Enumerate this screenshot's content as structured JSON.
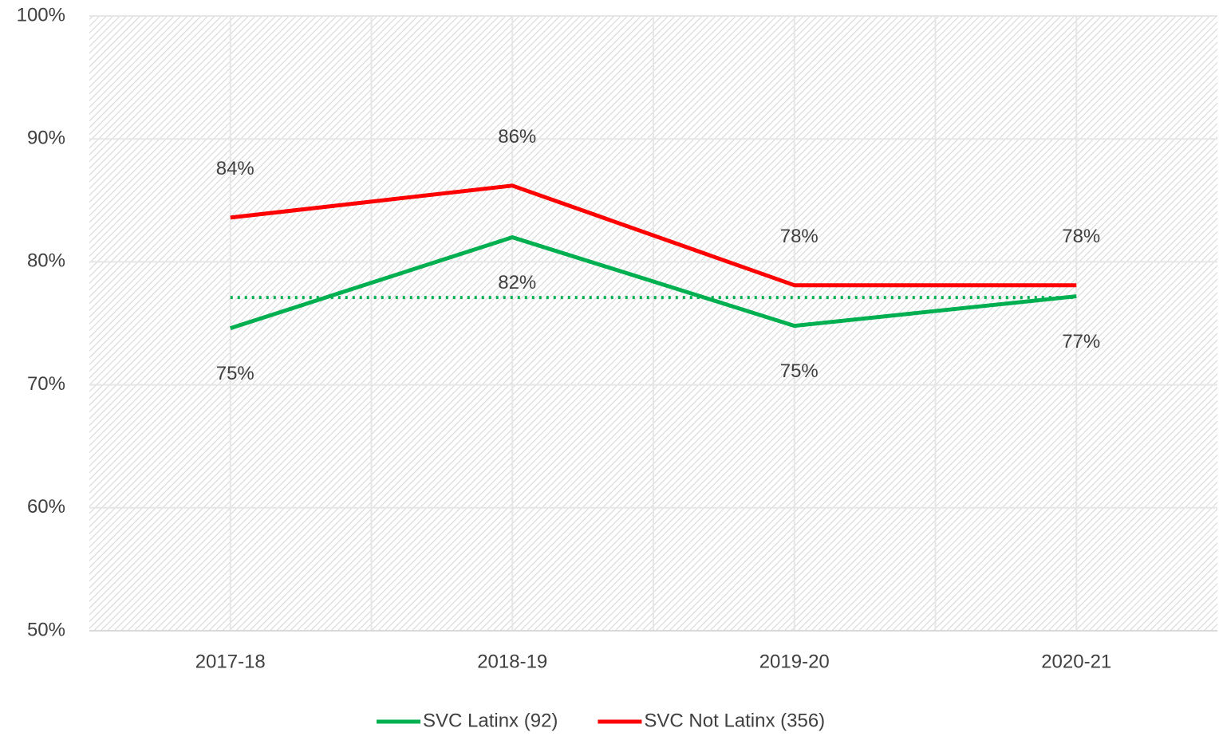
{
  "chart_data": {
    "type": "line",
    "categories": [
      "2017-18",
      "2018-19",
      "2019-20",
      "2020-21"
    ],
    "series": [
      {
        "name": "SVC Latinx (92)",
        "color": "#00b050",
        "values": [
          74.6,
          82.0,
          74.8,
          77.2
        ],
        "value_labels": [
          "75%",
          "82%",
          "75%",
          "77%"
        ]
      },
      {
        "name": "SVC Not Latinx (356)",
        "color": "#ff0000",
        "values": [
          83.6,
          86.2,
          78.1,
          78.1
        ],
        "value_labels": [
          "84%",
          "86%",
          "78%",
          "78%"
        ]
      }
    ],
    "reference_line": {
      "value": 77.1,
      "color": "#00b050"
    },
    "ylim": [
      50,
      100
    ],
    "yticks": [
      {
        "value": 50,
        "label": "50%"
      },
      {
        "value": 60,
        "label": "60%"
      },
      {
        "value": 70,
        "label": "70%"
      },
      {
        "value": 80,
        "label": "80%"
      },
      {
        "value": 90,
        "label": "90%"
      },
      {
        "value": 100,
        "label": "100%"
      }
    ],
    "grid": true,
    "legend": "bottom"
  }
}
